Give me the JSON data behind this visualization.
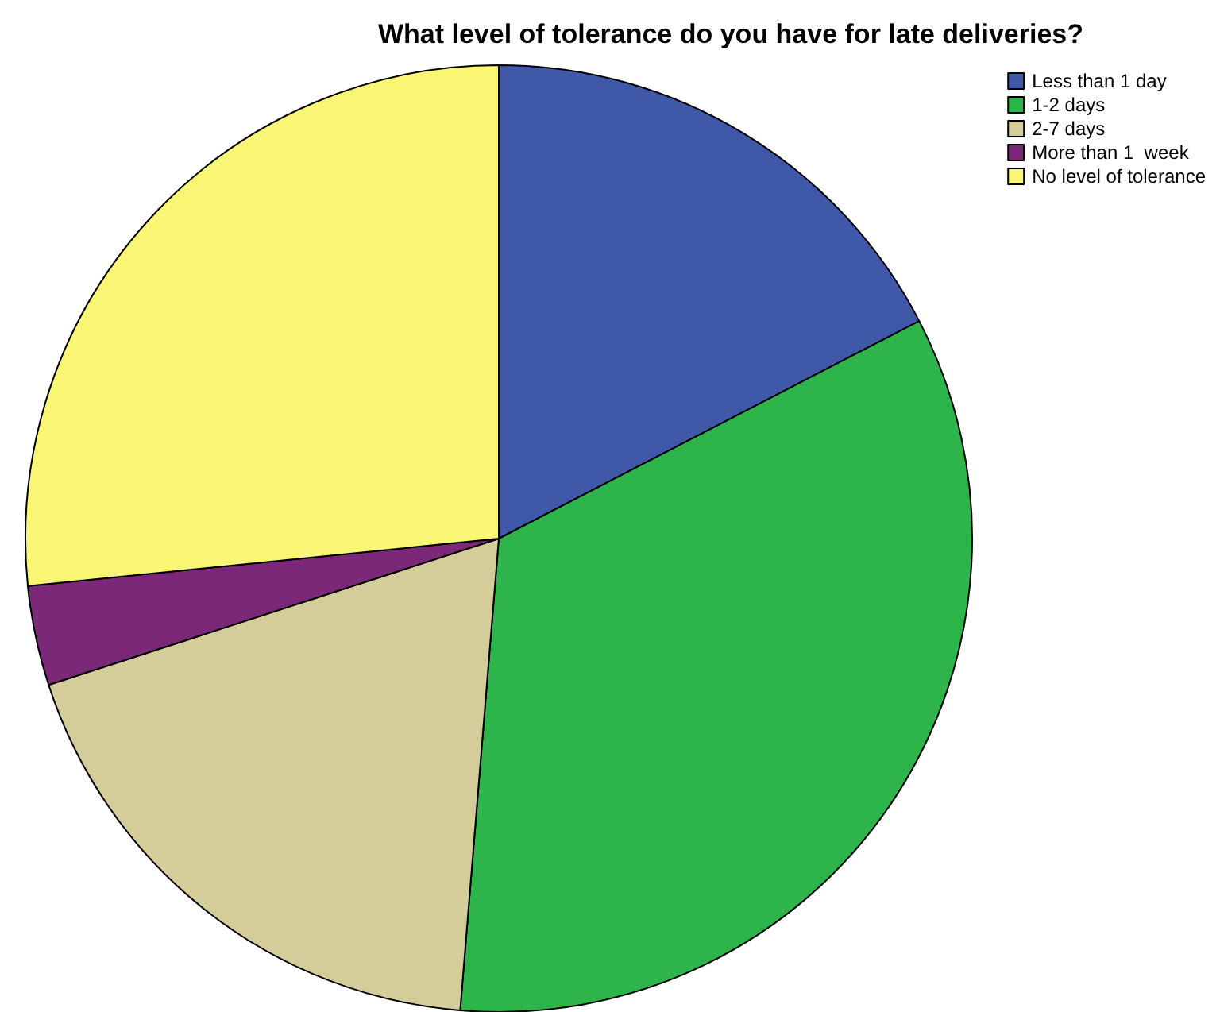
{
  "chart_data": {
    "type": "pie",
    "title": "What level of tolerance do you have for late deliveries?",
    "categories": [
      "Less than 1 day",
      "1-2 days",
      "2-7 days",
      "More than 1  week",
      "No level of tolerance"
    ],
    "values": [
      17.4,
      33.9,
      18.7,
      3.4,
      26.6
    ],
    "colors": [
      "#3f58a8",
      "#2db44a",
      "#d4cd99",
      "#7c2879",
      "#f9f575"
    ],
    "legend": "top right"
  }
}
